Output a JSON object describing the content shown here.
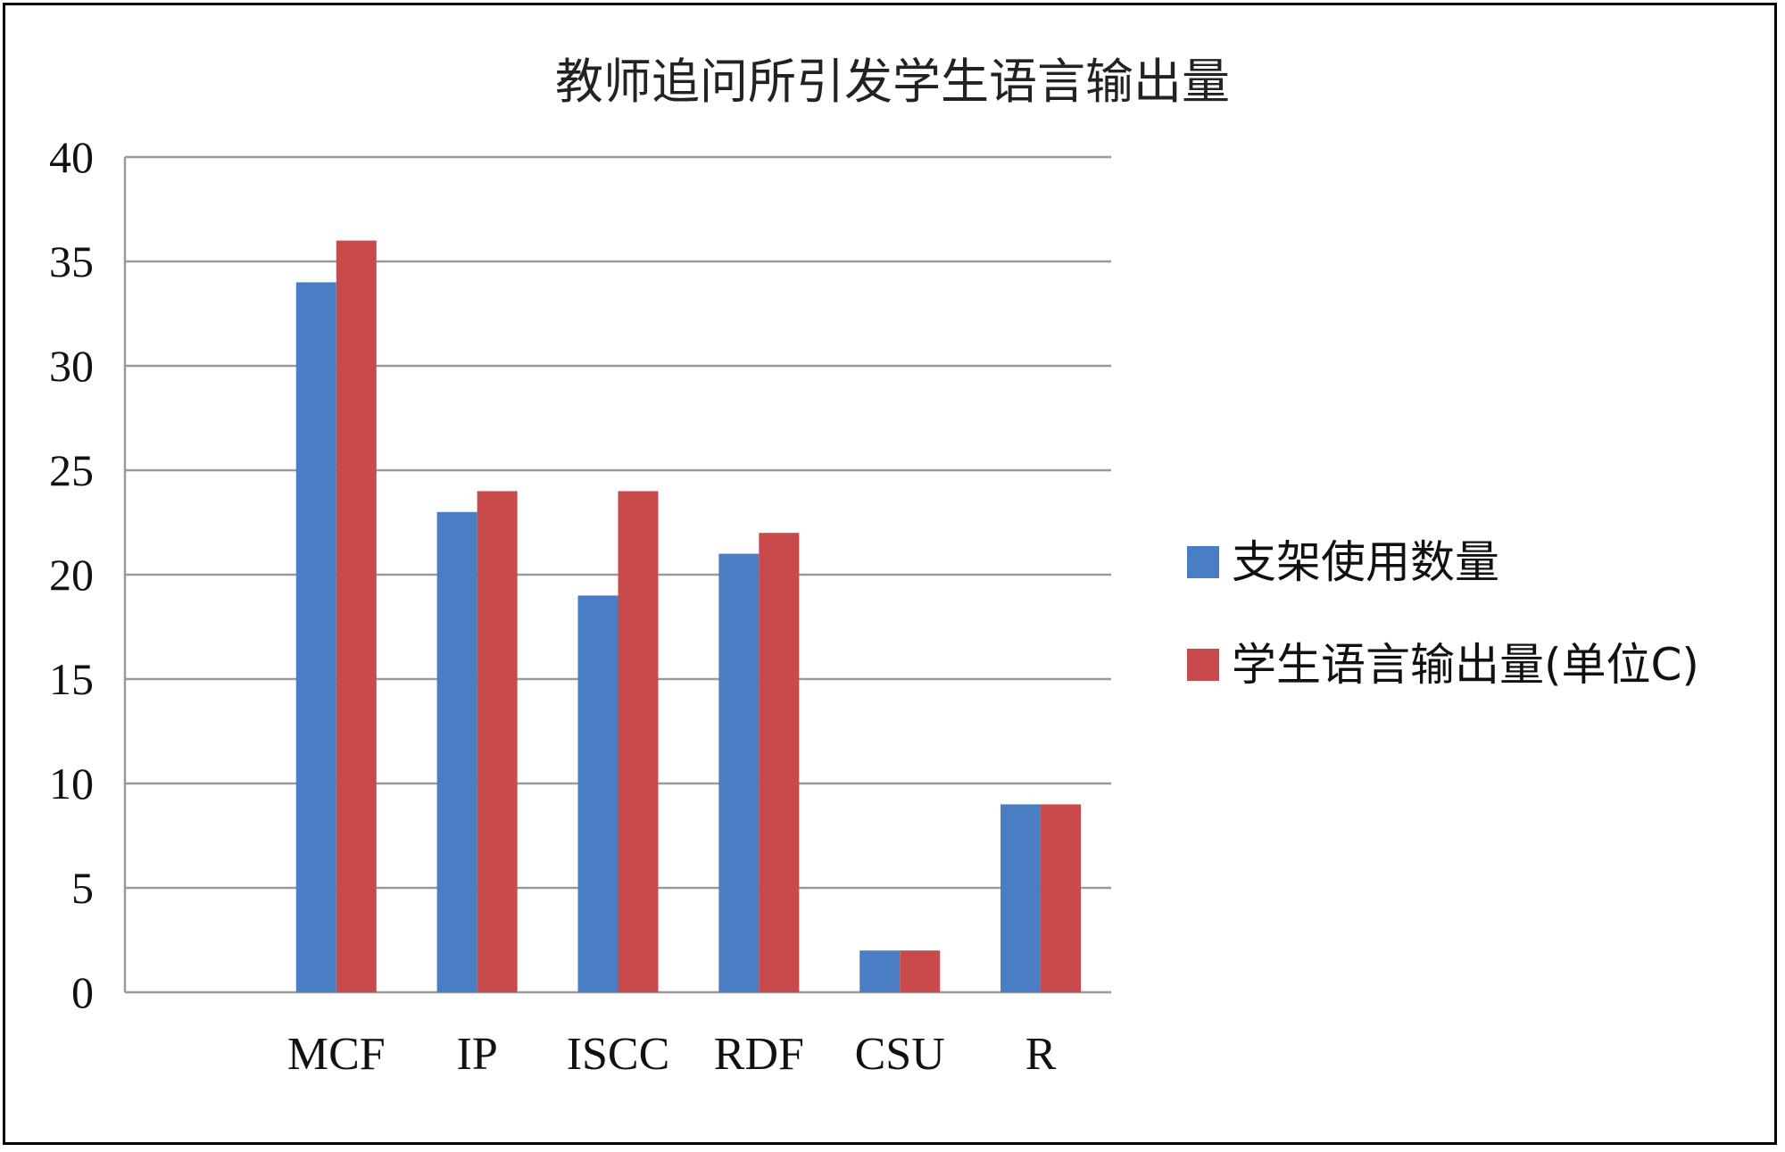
{
  "chart_data": {
    "type": "bar",
    "title": "教师追问所引发学生语言输出量",
    "categories": [
      "MCF",
      "IP",
      "ISCC",
      "RDF",
      "CSU",
      "R"
    ],
    "series": [
      {
        "name": "支架使用数量",
        "values": [
          34,
          23,
          19,
          21,
          2,
          9
        ],
        "color": "#4a7ec4"
      },
      {
        "name": "学生语言输出量(单位C)",
        "values": [
          36,
          24,
          24,
          22,
          2,
          9
        ],
        "color": "#c94a4a"
      }
    ],
    "ylim": [
      0,
      40
    ],
    "yticks": [
      0,
      5,
      10,
      15,
      20,
      25,
      30,
      35,
      40
    ],
    "grid": true,
    "legend_position": "right"
  }
}
